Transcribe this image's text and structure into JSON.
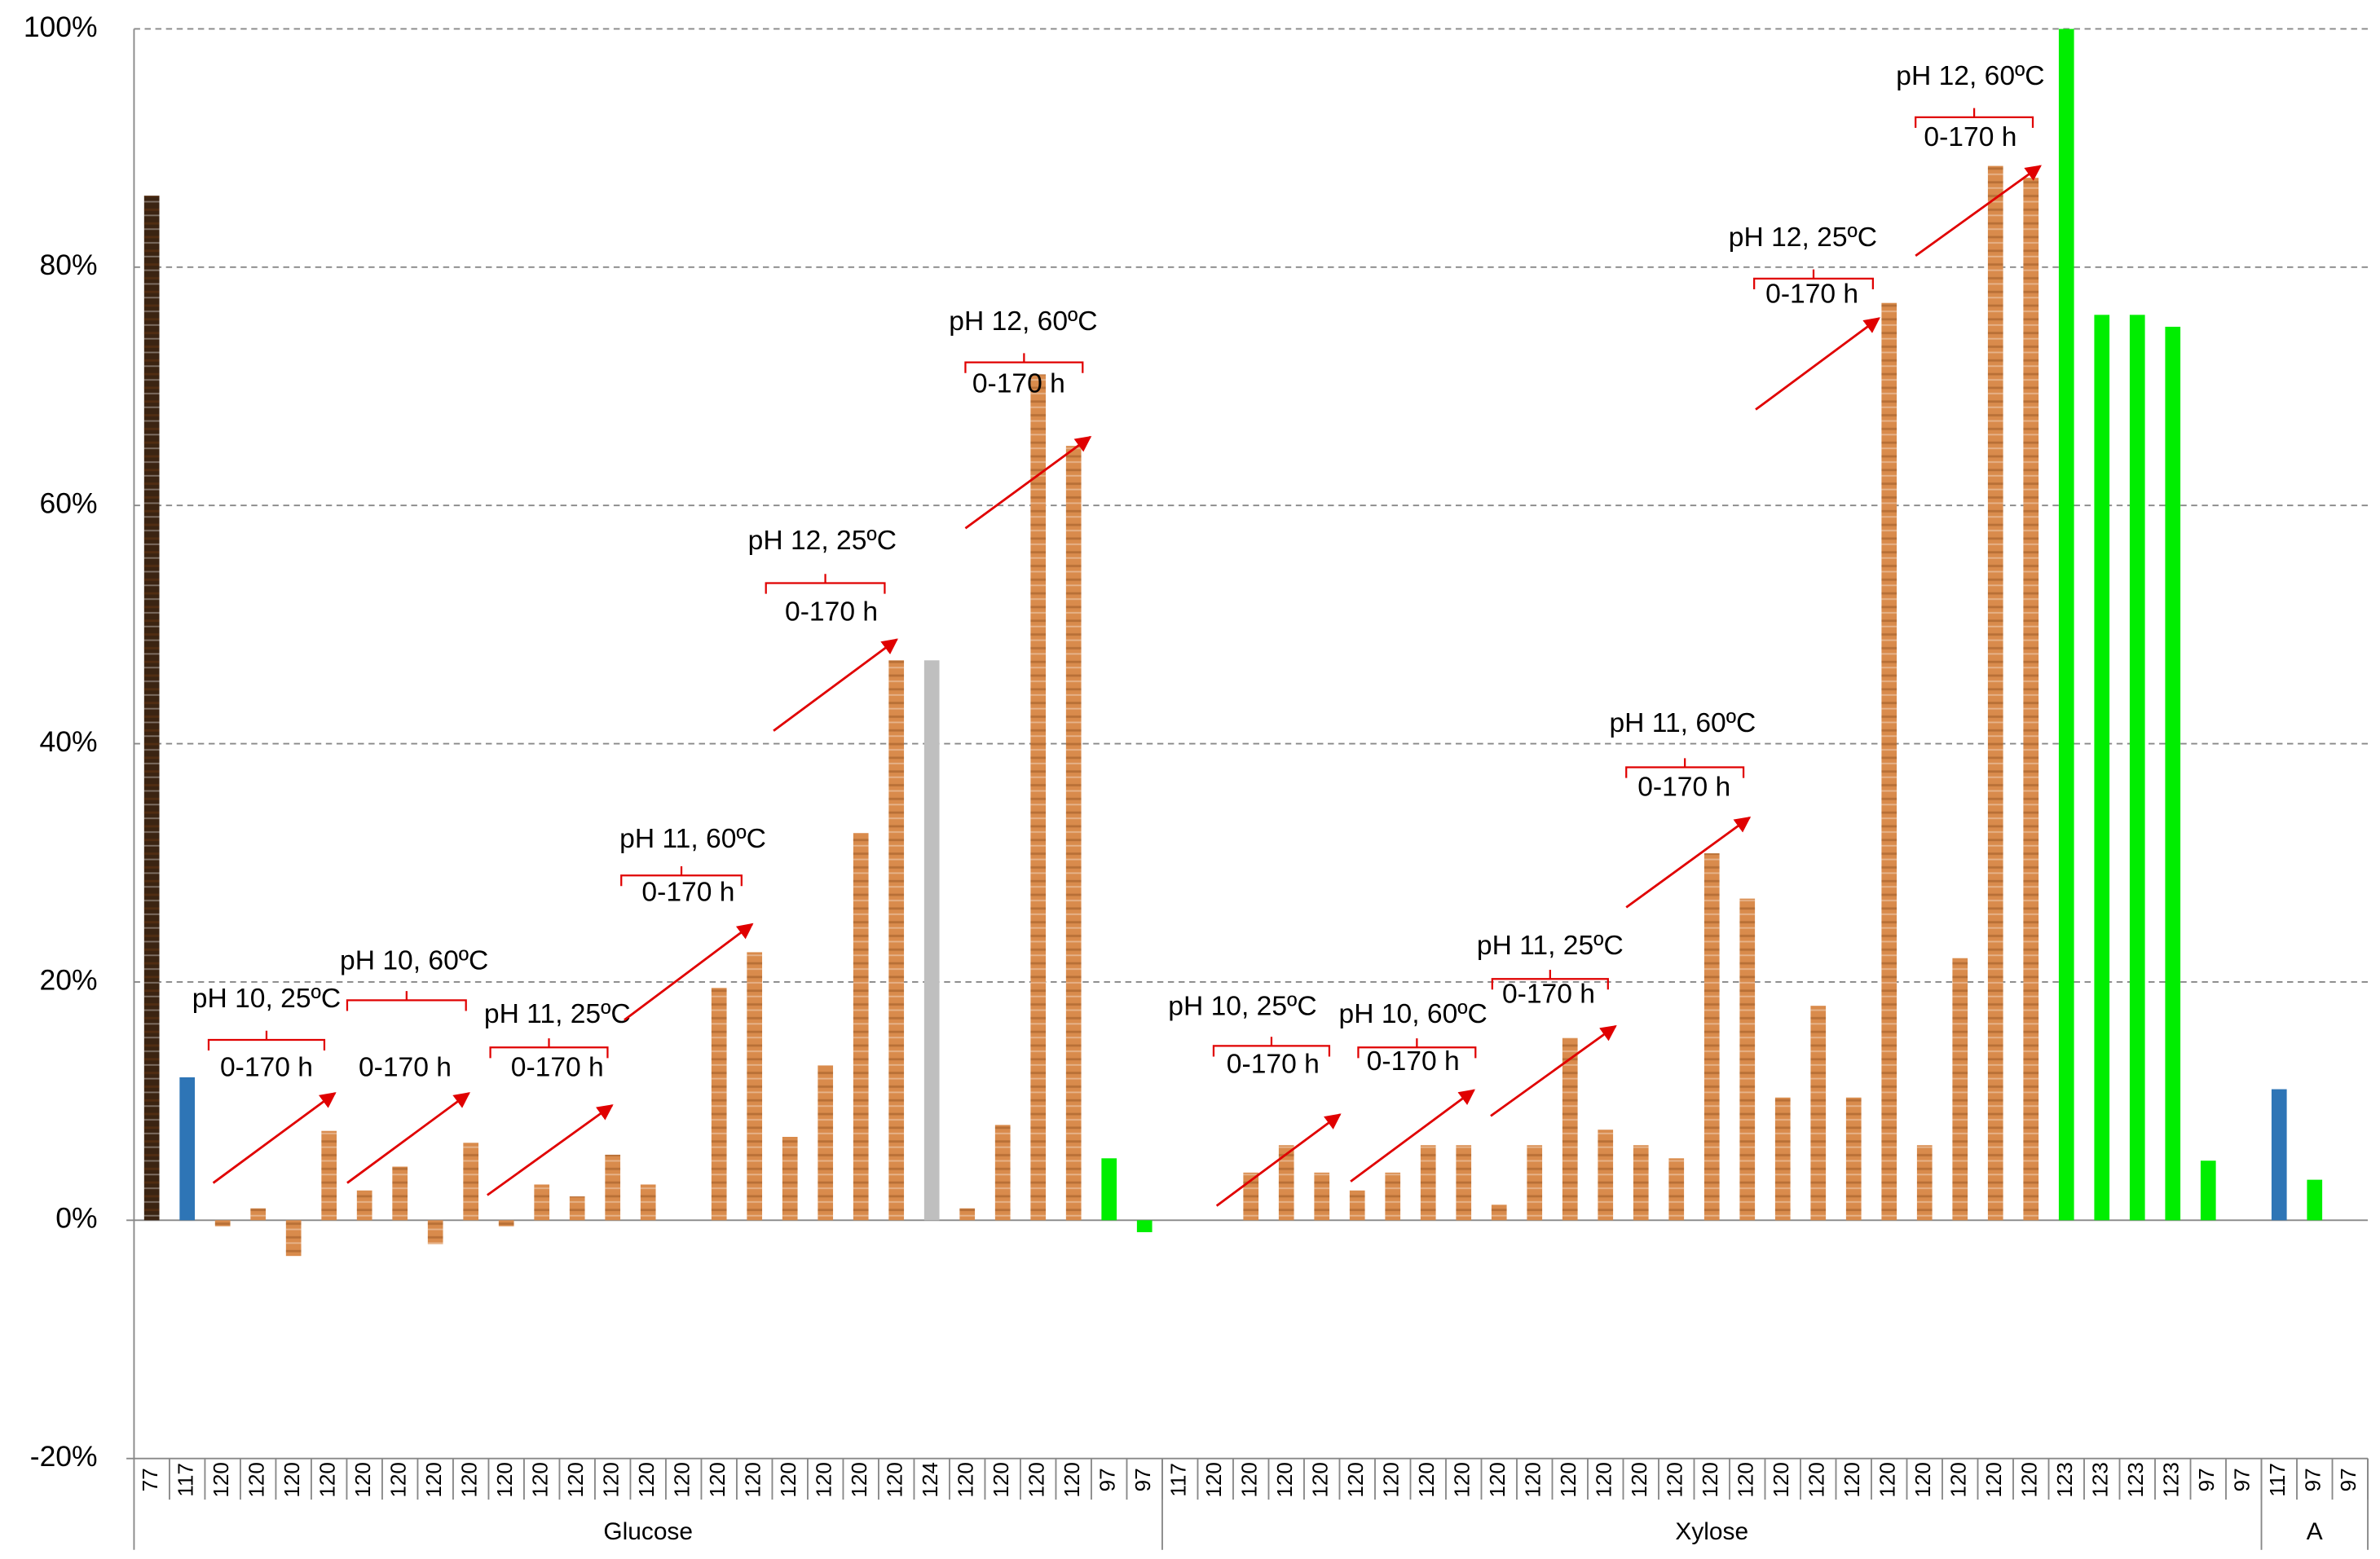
{
  "chart_data": {
    "type": "bar",
    "categories": [
      "77",
      "117",
      "120",
      "120",
      "120",
      "120",
      "120",
      "120",
      "120",
      "120",
      "120",
      "120",
      "120",
      "120",
      "120",
      "120",
      "120",
      "120",
      "120",
      "120",
      "120",
      "120",
      "124",
      "120",
      "120",
      "120",
      "120",
      "97",
      "97",
      "117",
      "120",
      "120",
      "120",
      "120",
      "120",
      "120",
      "120",
      "120",
      "120",
      "120",
      "120",
      "120",
      "120",
      "120",
      "120",
      "120",
      "120",
      "120",
      "120",
      "120",
      "120",
      "120",
      "120",
      "120",
      "123",
      "123",
      "123",
      "123",
      "97",
      "97",
      "117",
      "97",
      "97"
    ],
    "values": [
      86,
      12,
      -0.5,
      1,
      -3,
      7.5,
      2.5,
      4.5,
      -2,
      6.5,
      -0.5,
      3,
      2,
      5.5,
      3,
      null,
      19.5,
      22.5,
      7,
      13,
      32.5,
      47,
      47,
      1,
      8,
      71,
      65,
      5.2,
      -1,
      null,
      null,
      4,
      6.3,
      4,
      2.5,
      4,
      6.3,
      6.3,
      1.3,
      6.3,
      15.3,
      7.6,
      6.3,
      5.2,
      30.8,
      27,
      10.3,
      18,
      10.3,
      77,
      6.3,
      22,
      88.5,
      87.5,
      100,
      76,
      76,
      75,
      5,
      null,
      11,
      3.4,
      null
    ],
    "colors": [
      "#3b2412",
      "#2e75b6",
      "#d98b4c",
      "#d98b4c",
      "#d98b4c",
      "#d98b4c",
      "#d98b4c",
      "#d98b4c",
      "#d98b4c",
      "#d98b4c",
      "#d98b4c",
      "#d98b4c",
      "#d98b4c",
      "#d98b4c",
      "#d98b4c",
      "#d98b4c",
      "#d98b4c",
      "#d98b4c",
      "#d98b4c",
      "#d98b4c",
      "#d98b4c",
      "#d98b4c",
      "#bfbfbf",
      "#d98b4c",
      "#d98b4c",
      "#d98b4c",
      "#d98b4c",
      "#00ee00",
      "#00ee00",
      "#2e75b6",
      "#d98b4c",
      "#d98b4c",
      "#d98b4c",
      "#d98b4c",
      "#d98b4c",
      "#d98b4c",
      "#d98b4c",
      "#d98b4c",
      "#d98b4c",
      "#d98b4c",
      "#d98b4c",
      "#d98b4c",
      "#d98b4c",
      "#d98b4c",
      "#d98b4c",
      "#d98b4c",
      "#d98b4c",
      "#d98b4c",
      "#d98b4c",
      "#d98b4c",
      "#d98b4c",
      "#d98b4c",
      "#d98b4c",
      "#d98b4c",
      "#00ee00",
      "#00ee00",
      "#00ee00",
      "#00ee00",
      "#00ee00",
      "#00ee00",
      "#2e75b6",
      "#00ee00",
      "#00ee00"
    ],
    "groups": [
      {
        "label": "Glucose",
        "from": 0,
        "to": 28
      },
      {
        "label": "Xylose",
        "from": 29,
        "to": 59
      },
      {
        "label": "A",
        "from": 60,
        "to": 62
      }
    ],
    "ylim": [
      -20,
      100
    ],
    "yticks": [
      {
        "value": -20,
        "label": "-20%"
      },
      {
        "value": 0,
        "label": "0%"
      },
      {
        "value": 20,
        "label": "20%"
      },
      {
        "value": 40,
        "label": "40%"
      },
      {
        "value": 60,
        "label": "60%"
      },
      {
        "value": 80,
        "label": "80%"
      },
      {
        "value": 100,
        "label": "100%"
      }
    ],
    "grid": true,
    "annotations": [
      {
        "text": "pH 10, 25ºC",
        "subtext": "0-170 h"
      },
      {
        "text": "pH 10, 60ºC",
        "subtext": "0-170 h"
      },
      {
        "text": "pH 11, 25ºC",
        "subtext": "0-170 h"
      },
      {
        "text": "pH 11, 60ºC",
        "subtext": "0-170 h"
      },
      {
        "text": "pH 12, 25ºC",
        "subtext": "0-170 h"
      },
      {
        "text": "pH 12, 60ºC",
        "subtext": "0-170 h"
      },
      {
        "text": "pH 10, 25ºC",
        "subtext": "0-170 h"
      },
      {
        "text": "pH 10, 60ºC",
        "subtext": "0-170 h"
      },
      {
        "text": "pH 11, 25ºC",
        "subtext": "0-170 h"
      },
      {
        "text": "pH 11, 60ºC",
        "subtext": "0-170 h"
      },
      {
        "text": "pH 12, 25ºC",
        "subtext": "0-170 h"
      },
      {
        "text": "pH 12, 60ºC",
        "subtext": "0-170 h"
      }
    ]
  }
}
